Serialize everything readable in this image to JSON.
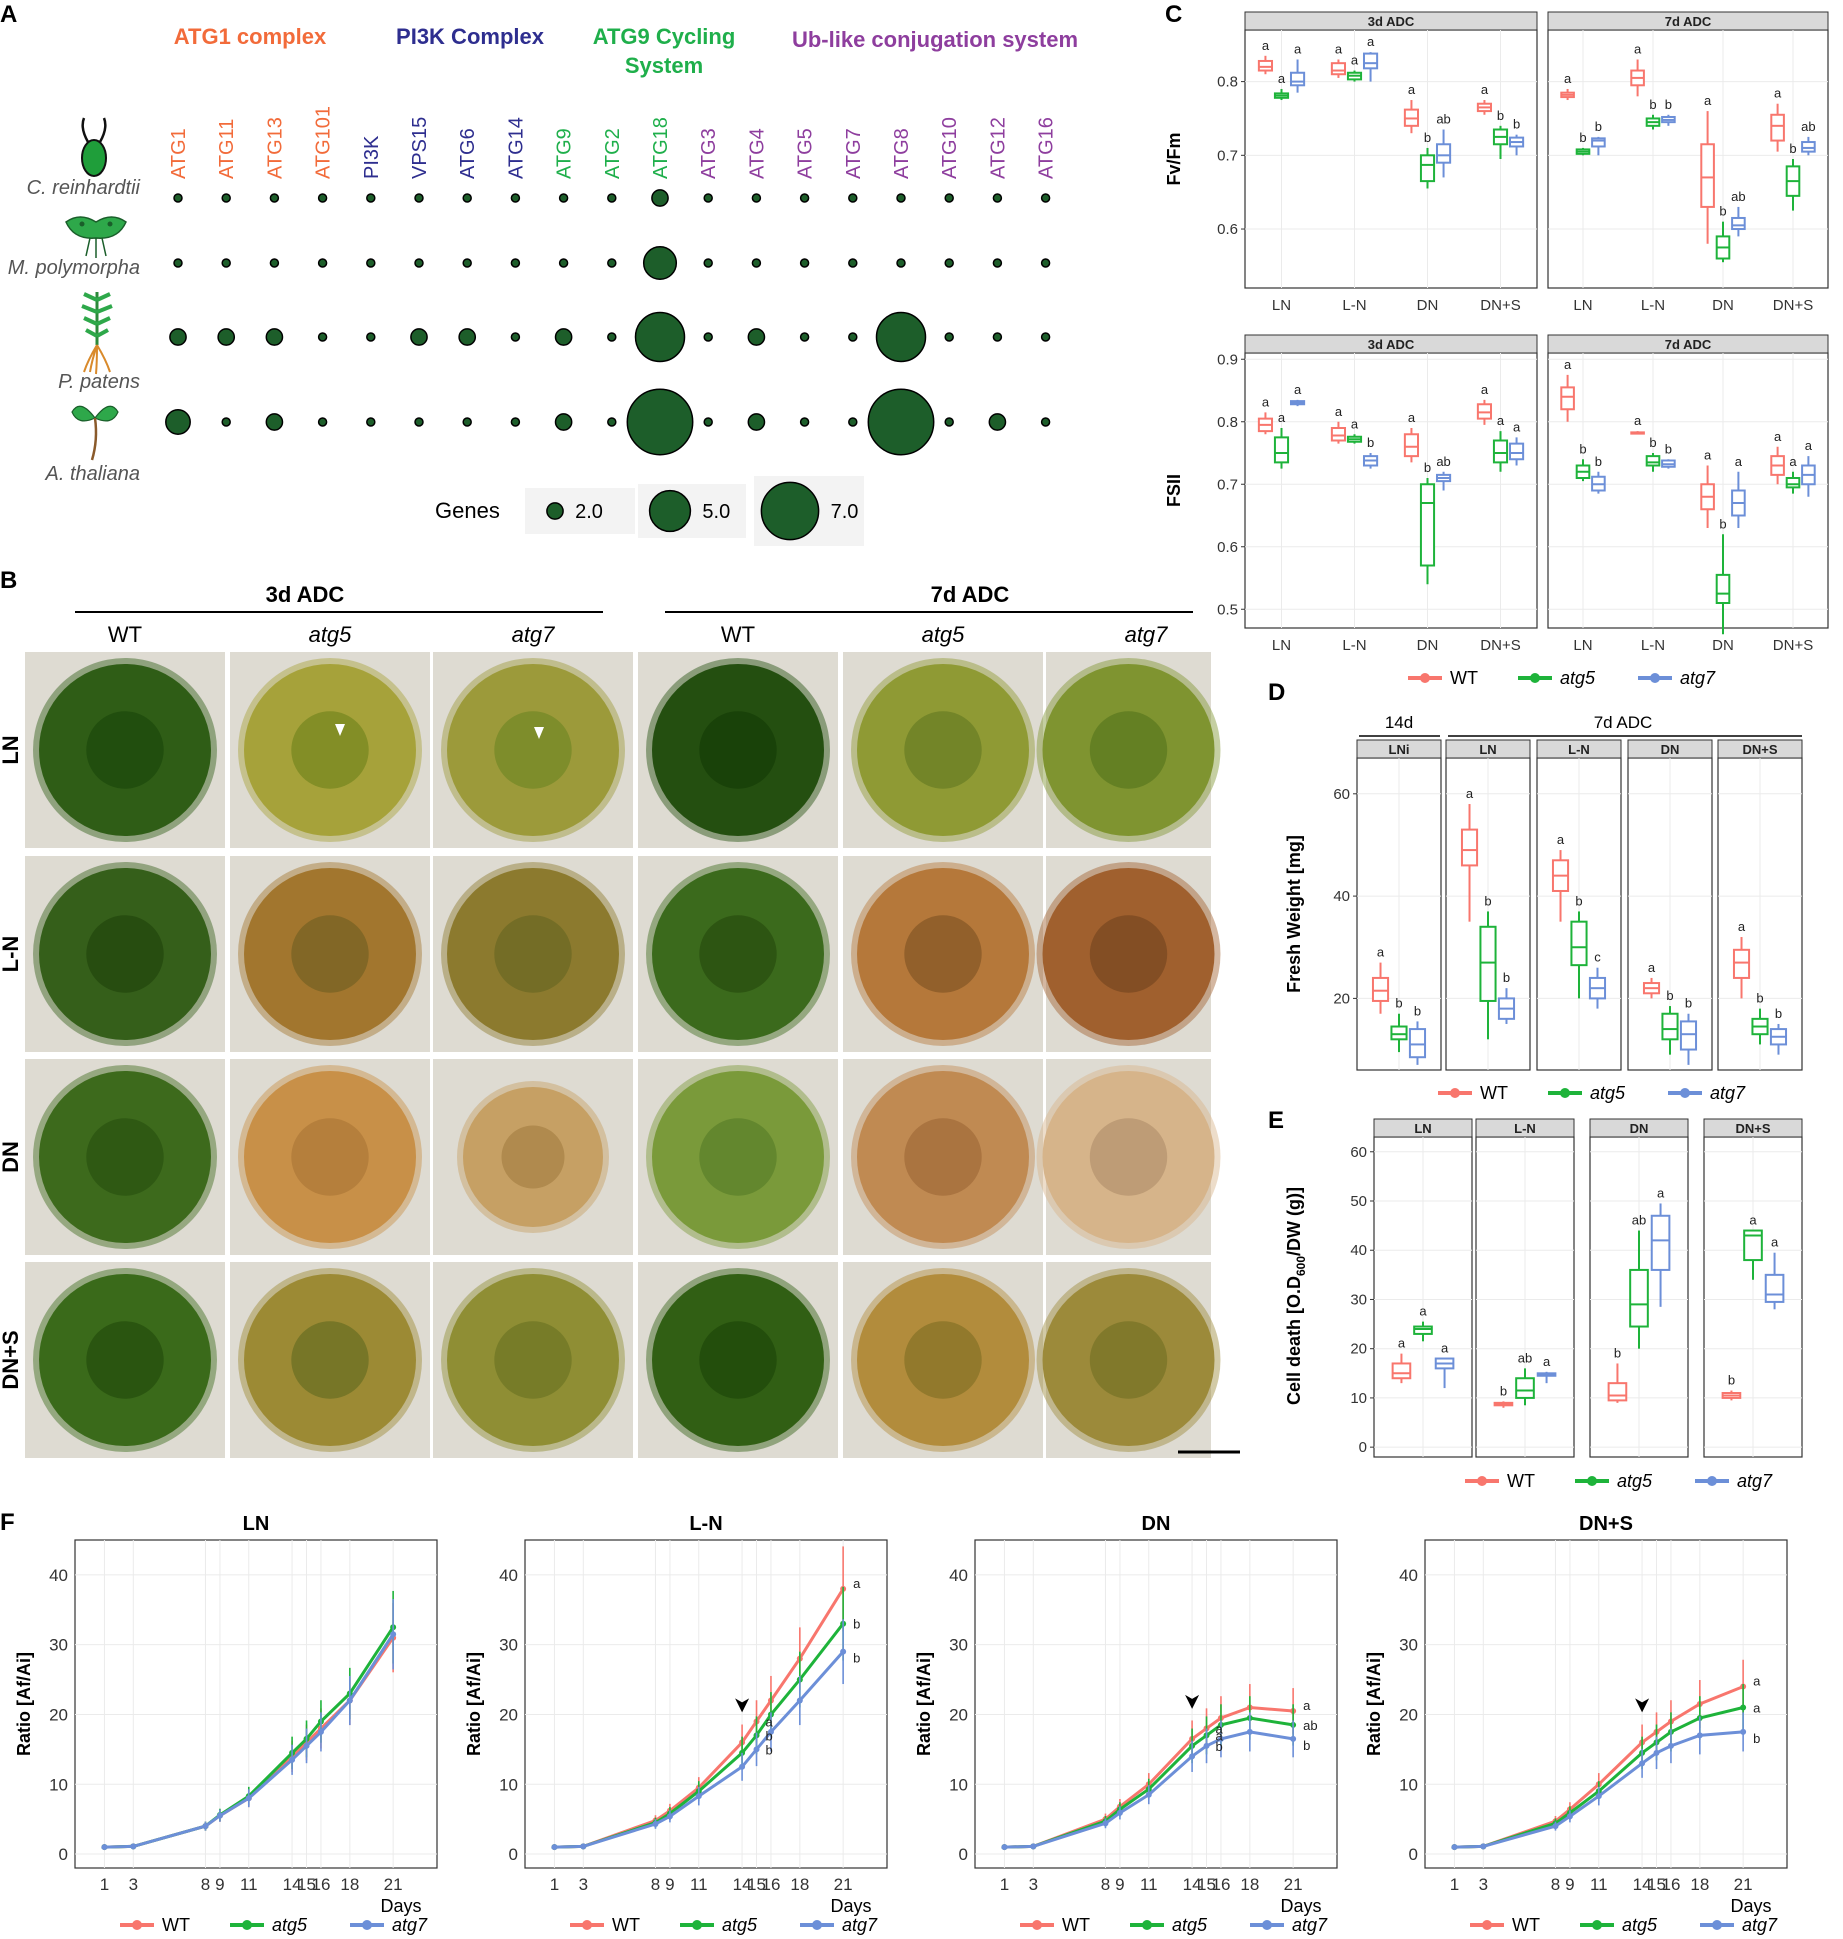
{
  "panel_labels": {
    "a": "A",
    "b": "B",
    "c": "C",
    "d": "D",
    "e": "E",
    "f": "F"
  },
  "colors": {
    "wt": "#F8766D",
    "atg5": "#1EB33A",
    "atg7": "#6C8FD8",
    "orange": "#F26B3A",
    "navy": "#2E2E8F",
    "green": "#1FAF4B",
    "purple": "#8E3E9E",
    "bubble": "#1D5E2A"
  },
  "panel_a": {
    "groups": [
      "ATG1 complex",
      "PI3K Complex",
      "ATG9 Cycling",
      "System",
      "Ub-like conjugation system"
    ],
    "genes": [
      "ATG1",
      "ATG11",
      "ATG13",
      "ATG101",
      "PI3K",
      "VPS15",
      "ATG6",
      "ATG14",
      "ATG9",
      "ATG2",
      "ATG18",
      "ATG3",
      "ATG4",
      "ATG5",
      "ATG7",
      "ATG8",
      "ATG10",
      "ATG12",
      "ATG16"
    ],
    "species": [
      "C. reinhardtii",
      "M. polymorpha",
      "P. patens",
      "A. thaliana"
    ],
    "counts": [
      [
        1,
        1,
        1,
        1,
        1,
        1,
        1,
        1,
        1,
        1,
        2,
        1,
        1,
        1,
        1,
        1,
        1,
        1,
        1
      ],
      [
        1,
        1,
        1,
        1,
        1,
        1,
        1,
        1,
        1,
        1,
        4,
        1,
        1,
        1,
        1,
        1,
        1,
        1,
        1
      ],
      [
        2,
        2,
        2,
        1,
        1,
        2,
        2,
        1,
        2,
        1,
        6,
        1,
        2,
        1,
        1,
        6,
        1,
        1,
        1
      ],
      [
        3,
        1,
        2,
        1,
        1,
        1,
        1,
        1,
        2,
        1,
        8,
        1,
        2,
        1,
        1,
        8,
        1,
        2,
        1
      ]
    ],
    "legend_title": "Genes",
    "legend_values": [
      "2.0",
      "5.0",
      "7.0"
    ],
    "legend_sizes": [
      2,
      5,
      7
    ]
  },
  "panel_b": {
    "headers": [
      "3d ADC",
      "7d ADC"
    ],
    "genotypes": [
      "WT",
      "atg5",
      "atg7",
      "WT",
      "atg5",
      "atg7"
    ],
    "rows": [
      "LN",
      "L-N",
      "DN",
      "DN+S"
    ]
  },
  "chart_data": [
    {
      "id": "C-fvfm",
      "type": "box",
      "ylabel": "Fv/Fm",
      "ylim": [
        0.52,
        0.87
      ],
      "yticks": [
        0.6,
        0.7,
        0.8
      ],
      "facets": [
        "3d ADC",
        "7d ADC"
      ],
      "categories": [
        "LN",
        "L-N",
        "DN",
        "DN+S"
      ],
      "series": [
        "WT",
        "atg5",
        "atg7"
      ],
      "boxes": {
        "3d ADC": [
          [
            [
              0.81,
              0.815,
              0.82,
              0.828,
              0.835
            ],
            [
              0.775,
              0.778,
              0.781,
              0.784,
              0.79
            ],
            [
              0.785,
              0.795,
              0.8,
              0.812,
              0.83
            ]
          ],
          [
            [
              0.805,
              0.81,
              0.815,
              0.825,
              0.83
            ],
            [
              0.8,
              0.803,
              0.808,
              0.812,
              0.815
            ],
            [
              0.8,
              0.818,
              0.825,
              0.838,
              0.84
            ]
          ],
          [
            [
              0.73,
              0.74,
              0.75,
              0.762,
              0.775
            ],
            [
              0.655,
              0.665,
              0.687,
              0.7,
              0.71
            ],
            [
              0.67,
              0.69,
              0.7,
              0.715,
              0.735
            ]
          ],
          [
            [
              0.755,
              0.76,
              0.765,
              0.77,
              0.775
            ],
            [
              0.695,
              0.715,
              0.725,
              0.735,
              0.74
            ],
            [
              0.7,
              0.712,
              0.718,
              0.724,
              0.728
            ]
          ]
        ],
        "7d ADC": [
          [
            [
              0.775,
              0.779,
              0.782,
              0.785,
              0.79
            ],
            [
              0.7,
              0.702,
              0.705,
              0.708,
              0.71
            ],
            [
              0.7,
              0.712,
              0.72,
              0.723,
              0.725
            ]
          ],
          [
            [
              0.78,
              0.795,
              0.805,
              0.815,
              0.83
            ],
            [
              0.735,
              0.74,
              0.745,
              0.75,
              0.755
            ],
            [
              0.74,
              0.745,
              0.748,
              0.752,
              0.755
            ]
          ],
          [
            [
              0.58,
              0.63,
              0.67,
              0.715,
              0.76
            ],
            [
              0.555,
              0.56,
              0.575,
              0.59,
              0.61
            ],
            [
              0.59,
              0.6,
              0.605,
              0.615,
              0.63
            ]
          ],
          [
            [
              0.705,
              0.72,
              0.74,
              0.755,
              0.77
            ],
            [
              0.625,
              0.645,
              0.665,
              0.685,
              0.695
            ],
            [
              0.7,
              0.705,
              0.71,
              0.718,
              0.725
            ]
          ]
        ]
      },
      "letters": {
        "3d ADC": [
          [
            "a",
            "a",
            "a"
          ],
          [
            "a",
            "a",
            "a"
          ],
          [
            "a",
            "b",
            "ab"
          ],
          [
            "a",
            "b",
            "b"
          ]
        ],
        "7d ADC": [
          [
            "a",
            "b",
            "b"
          ],
          [
            "a",
            "b",
            "b"
          ],
          [
            "a",
            "b",
            "ab"
          ],
          [
            "a",
            "b",
            "ab"
          ]
        ]
      }
    },
    {
      "id": "C-fsii",
      "type": "box",
      "ylabel": "FSII",
      "ylim": [
        0.47,
        0.91
      ],
      "yticks": [
        0.5,
        0.6,
        0.7,
        0.8,
        0.9
      ],
      "facets": [
        "3d ADC",
        "7d ADC"
      ],
      "categories": [
        "LN",
        "L-N",
        "DN",
        "DN+S"
      ],
      "series": [
        "WT",
        "atg5",
        "atg7"
      ],
      "boxes": {
        "3d ADC": [
          [
            [
              0.78,
              0.785,
              0.795,
              0.805,
              0.815
            ],
            [
              0.725,
              0.735,
              0.75,
              0.775,
              0.79
            ],
            [
              0.825,
              0.828,
              0.83,
              0.833,
              0.835
            ]
          ],
          [
            [
              0.765,
              0.77,
              0.778,
              0.79,
              0.8
            ],
            [
              0.765,
              0.768,
              0.772,
              0.776,
              0.78
            ],
            [
              0.725,
              0.73,
              0.738,
              0.745,
              0.75
            ]
          ],
          [
            [
              0.735,
              0.745,
              0.76,
              0.78,
              0.79
            ],
            [
              0.54,
              0.57,
              0.67,
              0.7,
              0.71
            ],
            [
              0.69,
              0.705,
              0.71,
              0.715,
              0.72
            ]
          ],
          [
            [
              0.795,
              0.805,
              0.815,
              0.828,
              0.835
            ],
            [
              0.72,
              0.735,
              0.75,
              0.77,
              0.785
            ],
            [
              0.73,
              0.74,
              0.75,
              0.765,
              0.775
            ]
          ]
        ],
        "7d ADC": [
          [
            [
              0.8,
              0.82,
              0.84,
              0.855,
              0.875
            ],
            [
              0.705,
              0.71,
              0.72,
              0.73,
              0.74
            ],
            [
              0.685,
              0.69,
              0.7,
              0.712,
              0.72
            ]
          ],
          [
            [
              0.78,
              0.781,
              0.782,
              0.783,
              0.785
            ],
            [
              0.72,
              0.73,
              0.735,
              0.745,
              0.75
            ],
            [
              0.725,
              0.728,
              0.732,
              0.738,
              0.74
            ]
          ],
          [
            [
              0.63,
              0.66,
              0.68,
              0.7,
              0.73
            ],
            [
              0.46,
              0.51,
              0.525,
              0.555,
              0.62
            ],
            [
              0.63,
              0.65,
              0.67,
              0.69,
              0.72
            ]
          ],
          [
            [
              0.7,
              0.715,
              0.73,
              0.745,
              0.76
            ],
            [
              0.685,
              0.695,
              0.7,
              0.71,
              0.72
            ],
            [
              0.68,
              0.7,
              0.715,
              0.73,
              0.745
            ]
          ]
        ]
      },
      "letters": {
        "3d ADC": [
          [
            "a",
            "a",
            "a"
          ],
          [
            "a",
            "a",
            "b"
          ],
          [
            "a",
            "b",
            "ab"
          ],
          [
            "a",
            "a",
            "a"
          ]
        ],
        "7d ADC": [
          [
            "a",
            "b",
            "b"
          ],
          [
            "a",
            "b",
            "b"
          ],
          [
            "a",
            "b",
            "a"
          ],
          [
            "a",
            "a",
            "a"
          ]
        ]
      }
    },
    {
      "id": "D",
      "type": "box",
      "ylabel": "Fresh Weight [mg]",
      "ylim": [
        6,
        67
      ],
      "yticks": [
        20,
        40,
        60
      ],
      "top_labels": [
        "14d",
        "7d ADC"
      ],
      "facets": [
        "LNi",
        "LN",
        "L-N",
        "DN",
        "DN+S"
      ],
      "series": [
        "WT",
        "atg5",
        "atg7"
      ],
      "boxes": [
        [
          [
            17,
            19.5,
            21.5,
            24,
            27
          ],
          [
            9.5,
            12,
            13,
            14.5,
            17
          ],
          [
            7,
            8.5,
            11,
            14,
            15.5
          ]
        ],
        [
          [
            35,
            46,
            49,
            53,
            58
          ],
          [
            12,
            19.5,
            27,
            34,
            37
          ],
          [
            15,
            16,
            18,
            20,
            22
          ]
        ],
        [
          [
            35,
            41,
            44,
            47,
            49
          ],
          [
            20,
            26.5,
            30,
            35,
            37
          ],
          [
            18,
            20,
            22,
            24,
            26
          ]
        ],
        [
          [
            20,
            21,
            22,
            23,
            24
          ],
          [
            9,
            12,
            14,
            17,
            18.5
          ],
          [
            7,
            10,
            13,
            15.5,
            17
          ]
        ],
        [
          [
            20,
            24,
            27,
            29.5,
            32
          ],
          [
            11,
            13,
            14.5,
            16,
            18
          ],
          [
            9,
            11,
            12.5,
            14,
            15
          ]
        ]
      ],
      "letters": [
        [
          "a",
          "b",
          "b"
        ],
        [
          "a",
          "b",
          "b"
        ],
        [
          "a",
          "b",
          "c"
        ],
        [
          "a",
          "b",
          "b"
        ],
        [
          "a",
          "b",
          "b"
        ]
      ]
    },
    {
      "id": "E",
      "type": "box",
      "ylabel": "Cell death [O.D600/DW (g)]",
      "ylabel_main": "Cell death [O.D",
      "ylabel_sub": "600",
      "ylabel_tail": "/DW (g)]",
      "ylim": [
        -2,
        63
      ],
      "yticks": [
        0,
        10,
        20,
        30,
        40,
        50,
        60
      ],
      "facets": [
        "LN",
        "L-N",
        "DN",
        "DN+S"
      ],
      "series": [
        "WT",
        "atg5",
        "atg7"
      ],
      "boxes": [
        [
          [
            13,
            14,
            15,
            17,
            19
          ],
          [
            21.5,
            23,
            24,
            24.5,
            25.5
          ],
          [
            12,
            16,
            17,
            18,
            18
          ]
        ],
        [
          [
            8,
            8.5,
            8.8,
            9,
            9.3
          ],
          [
            8.5,
            10,
            11.5,
            14,
            16
          ],
          [
            13,
            14.5,
            14.8,
            15,
            15.3
          ]
        ],
        [
          [
            9,
            9.5,
            10.5,
            13,
            17
          ],
          [
            20,
            24.5,
            29,
            36,
            44
          ],
          [
            28.5,
            36,
            42,
            47,
            49.5
          ]
        ],
        [
          [
            9.5,
            10,
            10.5,
            11,
            11.5
          ],
          [
            34,
            38,
            43,
            44,
            44
          ],
          [
            28,
            29.5,
            31,
            35,
            39.5
          ]
        ]
      ],
      "letters": [
        [
          "a",
          "a",
          "a"
        ],
        [
          "b",
          "ab",
          "a"
        ],
        [
          "b",
          "ab",
          "a"
        ],
        [
          "b",
          "a",
          "a"
        ]
      ]
    },
    {
      "id": "F",
      "type": "line",
      "ylabel": "Ratio [Af/Ai]",
      "xlabel": "Days",
      "x": [
        1,
        3,
        8,
        9,
        11,
        14,
        15,
        16,
        18,
        21
      ],
      "xtick_labels": [
        "1",
        "3",
        "8",
        "9",
        "11",
        "14",
        "15",
        "16",
        "18",
        "21"
      ],
      "ylim": [
        -2,
        45
      ],
      "yticks": [
        0,
        10,
        20,
        30,
        40
      ],
      "facets": [
        "LN",
        "L-N",
        "DN",
        "DN+S"
      ],
      "series": [
        "WT",
        "atg5",
        "atg7"
      ],
      "values": {
        "LN": [
          [
            1,
            1.1,
            4,
            5.5,
            8,
            14,
            16,
            18,
            22,
            31
          ],
          [
            1,
            1.1,
            4,
            5.6,
            8.3,
            14.5,
            16.5,
            19,
            23,
            32.5
          ],
          [
            1,
            1.1,
            4,
            5.5,
            8,
            13.5,
            15.5,
            17.5,
            22,
            31.5
          ]
        ],
        "L-N": [
          [
            1,
            1.1,
            4.8,
            6.2,
            9.5,
            16,
            19,
            22,
            28,
            38
          ],
          [
            1,
            1.1,
            4.5,
            5.8,
            9,
            14.5,
            17,
            20,
            25,
            33
          ],
          [
            1,
            1.1,
            4.3,
            5.4,
            8.3,
            12.5,
            15,
            17.5,
            22,
            29
          ]
        ],
        "DN": [
          [
            1,
            1.1,
            5,
            6.8,
            10,
            16.5,
            18,
            19.5,
            21,
            20.5
          ],
          [
            1,
            1.1,
            4.7,
            6.4,
            9.3,
            15.5,
            17,
            18.5,
            19.5,
            18.5
          ],
          [
            1,
            1.1,
            4.4,
            5.9,
            8.5,
            14,
            15.5,
            16.5,
            17.5,
            16.5
          ]
        ],
        "DN+S": [
          [
            1,
            1.1,
            4.7,
            6.4,
            10,
            16,
            17.5,
            19,
            21.5,
            24
          ],
          [
            1,
            1.1,
            4.4,
            5.9,
            9,
            14.5,
            16,
            17.5,
            19.5,
            21
          ],
          [
            1,
            1.1,
            4,
            5.4,
            8.3,
            13,
            14.5,
            15.5,
            17,
            17.5
          ]
        ]
      },
      "letters": {
        "LN": [],
        "L-N": [
          "a",
          "b",
          "b"
        ],
        "DN": [
          "a",
          "ab",
          "b"
        ],
        "DN+S": [
          "a",
          "a",
          "b"
        ]
      },
      "mid_letters": {
        "LN": [],
        "L-N": [
          "a",
          "b",
          "b"
        ],
        "DN": [
          "a",
          "a",
          "b"
        ],
        "DN+S": []
      }
    }
  ],
  "legend_items": [
    "WT",
    "atg5",
    "atg7"
  ]
}
